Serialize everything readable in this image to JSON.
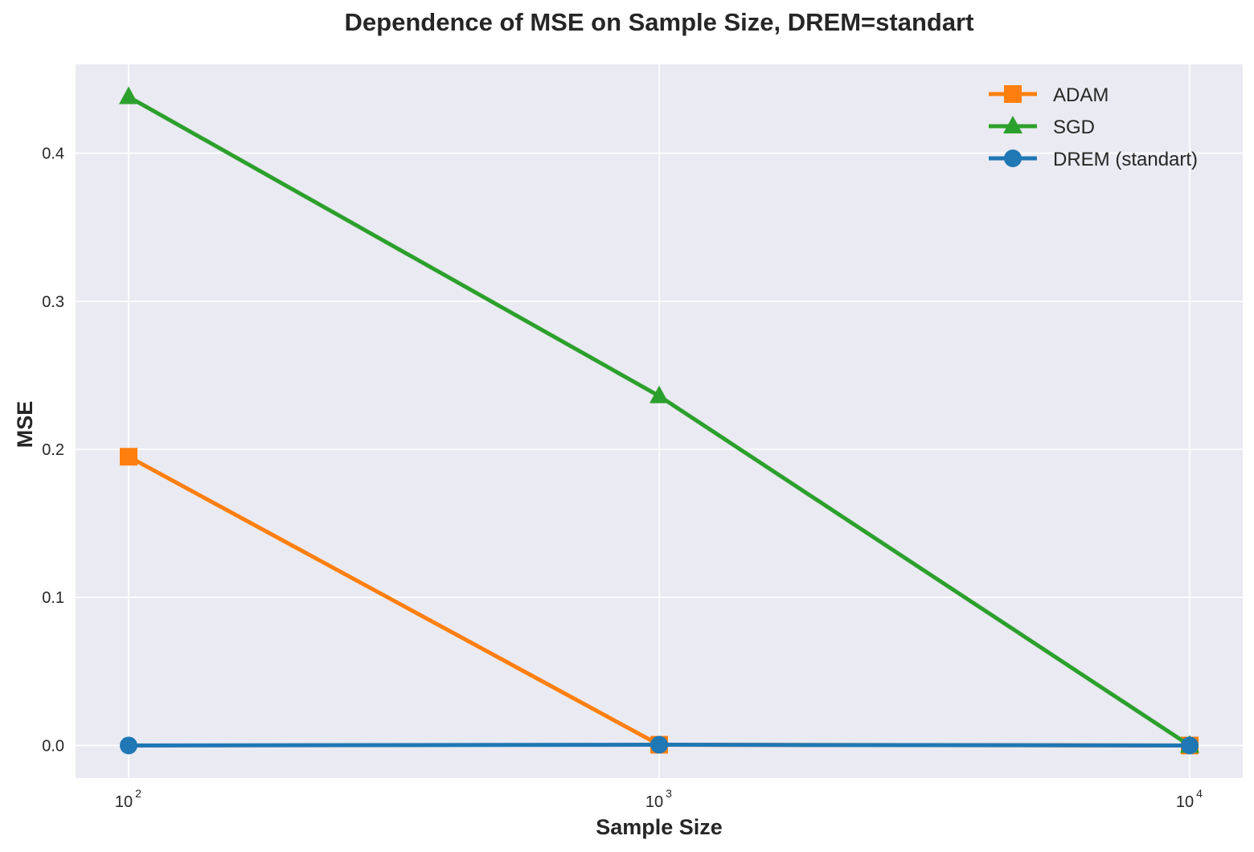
{
  "chart_data": {
    "type": "line",
    "title": "Dependence of MSE on Sample Size, DREM=standart",
    "xlabel": "Sample Size",
    "ylabel": "MSE",
    "xscale": "log",
    "x": [
      100,
      1000,
      10000
    ],
    "x_tick_labels": [
      {
        "value": 100,
        "base": "10",
        "exp": "2"
      },
      {
        "value": 1000,
        "base": "10",
        "exp": "3"
      },
      {
        "value": 10000,
        "base": "10",
        "exp": "4"
      }
    ],
    "y_ticks": [
      "0.0",
      "0.1",
      "0.2",
      "0.3",
      "0.4"
    ],
    "ylim": [
      -0.022,
      0.46
    ],
    "grid": true,
    "legend_position": "top-right",
    "series": [
      {
        "name": "ADAM",
        "color": "#ff7f0e",
        "marker": "square",
        "values": [
          0.195,
          0.0005,
          0.0
        ]
      },
      {
        "name": "SGD",
        "color": "#2ca02c",
        "marker": "triangle",
        "values": [
          0.438,
          0.236,
          0.0
        ]
      },
      {
        "name": "DREM (standart)",
        "color": "#1f77b4",
        "marker": "circle",
        "values": [
          0.0,
          0.0005,
          0.0
        ]
      }
    ]
  }
}
